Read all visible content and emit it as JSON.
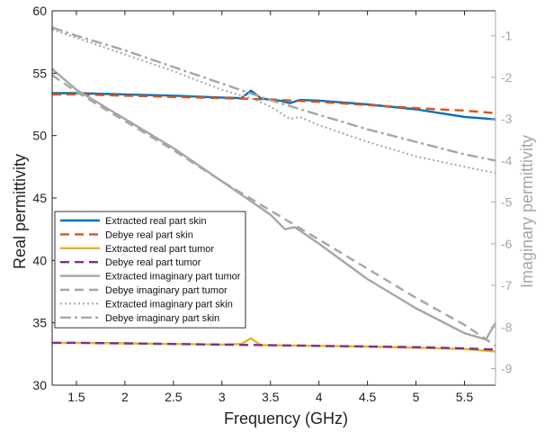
{
  "chart_data": {
    "type": "line",
    "title": "",
    "xlabel": "Frequency (GHz)",
    "ylabel": "Real permittivity",
    "y2label": "Imaginary permittivity",
    "xlim": [
      1.25,
      5.82
    ],
    "ylim": [
      30,
      60
    ],
    "y2lim": [
      -9.4,
      -0.4
    ],
    "x_ticks": [
      1.5,
      2,
      2.5,
      3,
      3.5,
      4,
      4.5,
      5,
      5.5
    ],
    "x_tick_labels": [
      "1.5",
      "2",
      "2.5",
      "3",
      "3.5",
      "4",
      "4.5",
      "5",
      "5.5"
    ],
    "y_ticks": [
      30,
      35,
      40,
      45,
      50,
      55,
      60
    ],
    "y_tick_labels": [
      "30",
      "35",
      "40",
      "45",
      "50",
      "55",
      "60"
    ],
    "y2_ticks": [
      -1,
      -2,
      -3,
      -4,
      -5,
      -6,
      -7,
      -8,
      -9
    ],
    "y2_tick_labels": [
      "-1",
      "-2",
      "-3",
      "-4",
      "-5",
      "-6",
      "-7",
      "-8",
      "-9"
    ],
    "grid": false,
    "legend_position": "lower-left",
    "series": [
      {
        "name": "Extracted real part skin",
        "axis": "left",
        "color": "#0072BD",
        "dash": "solid",
        "width": 2.4,
        "x": [
          1.25,
          1.5,
          2.0,
          2.5,
          3.0,
          3.2,
          3.3,
          3.4,
          3.5,
          3.6,
          3.7,
          3.8,
          4.0,
          4.5,
          5.0,
          5.5,
          5.82
        ],
        "y": [
          53.4,
          53.4,
          53.3,
          53.2,
          53.05,
          53.0,
          53.6,
          53.0,
          52.85,
          52.8,
          52.6,
          52.85,
          52.8,
          52.5,
          52.1,
          51.5,
          51.3
        ]
      },
      {
        "name": "Debye real part skin",
        "axis": "left",
        "color": "#D95319",
        "dash": "dashed",
        "width": 2.4,
        "x": [
          1.25,
          1.5,
          2.0,
          2.5,
          3.0,
          3.5,
          4.0,
          4.5,
          5.0,
          5.5,
          5.82
        ],
        "y": [
          53.3,
          53.3,
          53.2,
          53.1,
          53.0,
          52.9,
          52.7,
          52.45,
          52.2,
          52.0,
          51.8
        ]
      },
      {
        "name": "Extracted real part tumor",
        "axis": "left",
        "color": "#EDB120",
        "dash": "solid",
        "width": 2.4,
        "x": [
          1.25,
          1.5,
          2.0,
          2.5,
          3.0,
          3.2,
          3.3,
          3.4,
          3.5,
          4.0,
          4.5,
          5.0,
          5.5,
          5.82
        ],
        "y": [
          33.4,
          33.4,
          33.35,
          33.3,
          33.25,
          33.3,
          33.75,
          33.2,
          33.2,
          33.15,
          33.1,
          33.0,
          32.9,
          32.7
        ]
      },
      {
        "name": "Debye real part tumor",
        "axis": "left",
        "color": "#7E2F8E",
        "dash": "dashed",
        "width": 2.4,
        "x": [
          1.25,
          1.5,
          2.0,
          2.5,
          3.0,
          3.5,
          4.0,
          4.5,
          5.0,
          5.5,
          5.82
        ],
        "y": [
          33.4,
          33.4,
          33.35,
          33.3,
          33.25,
          33.2,
          33.15,
          33.1,
          33.05,
          32.95,
          32.85
        ]
      },
      {
        "name": "Extracted imaginary part tumor",
        "axis": "right",
        "color": "#A6A6A6",
        "dash": "solid",
        "width": 2.4,
        "x": [
          1.25,
          1.5,
          2.0,
          2.5,
          3.0,
          3.5,
          3.65,
          3.75,
          4.0,
          4.5,
          5.0,
          5.5,
          5.72,
          5.82
        ],
        "y": [
          -1.8,
          -2.3,
          -3.0,
          -3.7,
          -4.5,
          -5.3,
          -5.65,
          -5.6,
          -6.0,
          -6.85,
          -7.55,
          -8.15,
          -8.3,
          -7.9
        ]
      },
      {
        "name": "Debye imaginary part tumor",
        "axis": "right",
        "color": "#A6A6A6",
        "dash": "dashed",
        "width": 2.4,
        "x": [
          1.25,
          1.5,
          2.0,
          2.5,
          3.0,
          3.5,
          4.0,
          4.5,
          5.0,
          5.5,
          5.82
        ],
        "y": [
          -1.95,
          -2.35,
          -3.05,
          -3.75,
          -4.5,
          -5.2,
          -5.9,
          -6.6,
          -7.3,
          -7.95,
          -8.45
        ]
      },
      {
        "name": "Extracted imaginary part skin",
        "axis": "right",
        "color": "#A6A6A6",
        "dash": "dotted",
        "width": 2.0,
        "x": [
          1.25,
          1.5,
          2.0,
          2.5,
          3.0,
          3.3,
          3.5,
          3.7,
          3.8,
          4.0,
          4.5,
          5.0,
          5.5,
          5.82
        ],
        "y": [
          -0.85,
          -1.05,
          -1.45,
          -1.85,
          -2.3,
          -2.5,
          -2.7,
          -3.0,
          -2.95,
          -3.15,
          -3.55,
          -3.9,
          -4.15,
          -4.3
        ]
      },
      {
        "name": "Debye imaginary part skin",
        "axis": "right",
        "color": "#A6A6A6",
        "dash": "dashdot",
        "width": 2.4,
        "x": [
          1.25,
          1.5,
          2.0,
          2.5,
          3.0,
          3.5,
          4.0,
          4.5,
          5.0,
          5.5,
          5.82
        ],
        "y": [
          -0.8,
          -1.0,
          -1.35,
          -1.75,
          -2.15,
          -2.55,
          -2.9,
          -3.25,
          -3.55,
          -3.85,
          -4.0
        ]
      }
    ]
  }
}
